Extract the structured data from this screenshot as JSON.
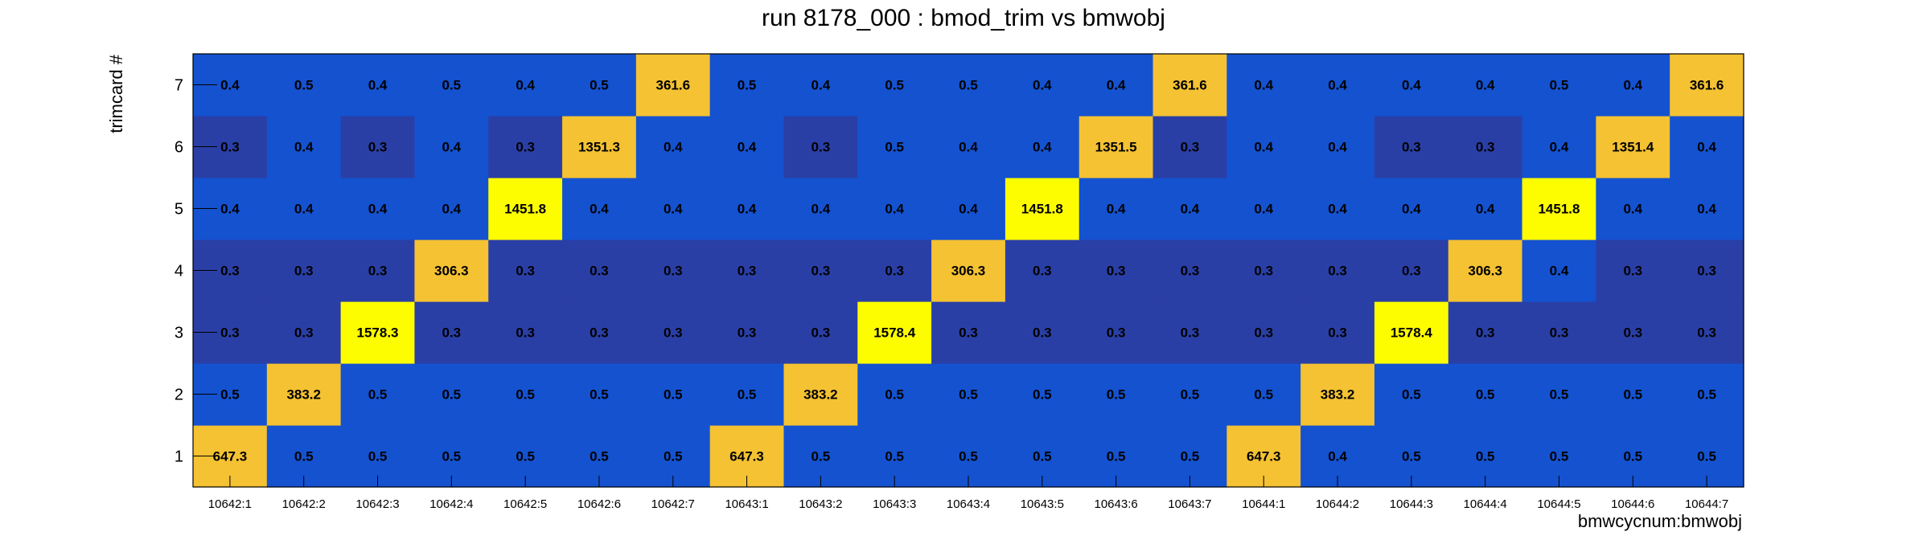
{
  "chart_data": {
    "type": "heatmap",
    "title": "run 8178_000 : bmod_trim vs bmwobj",
    "xlabel": "bmwcycnum:bmwobj",
    "ylabel": "trimcard #",
    "categories": [
      "10642:1",
      "10642:2",
      "10642:3",
      "10642:4",
      "10642:5",
      "10642:6",
      "10642:7",
      "10643:1",
      "10643:2",
      "10643:3",
      "10643:4",
      "10643:5",
      "10643:6",
      "10643:7",
      "10644:1",
      "10644:2",
      "10644:3",
      "10644:4",
      "10644:5",
      "10644:6",
      "10644:7"
    ],
    "rows": [
      "1",
      "2",
      "3",
      "4",
      "5",
      "6",
      "7"
    ],
    "values": [
      [
        "647.3",
        "0.5",
        "0.5",
        "0.5",
        "0.5",
        "0.5",
        "0.5",
        "647.3",
        "0.5",
        "0.5",
        "0.5",
        "0.5",
        "0.5",
        "0.5",
        "647.3",
        "0.4",
        "0.5",
        "0.5",
        "0.5",
        "0.5",
        "0.5"
      ],
      [
        "0.5",
        "383.2",
        "0.5",
        "0.5",
        "0.5",
        "0.5",
        "0.5",
        "0.5",
        "383.2",
        "0.5",
        "0.5",
        "0.5",
        "0.5",
        "0.5",
        "0.5",
        "383.2",
        "0.5",
        "0.5",
        "0.5",
        "0.5",
        "0.5"
      ],
      [
        "0.3",
        "0.3",
        "1578.3",
        "0.3",
        "0.3",
        "0.3",
        "0.3",
        "0.3",
        "0.3",
        "1578.4",
        "0.3",
        "0.3",
        "0.3",
        "0.3",
        "0.3",
        "0.3",
        "1578.4",
        "0.3",
        "0.3",
        "0.3",
        "0.3"
      ],
      [
        "0.3",
        "0.3",
        "0.3",
        "306.3",
        "0.3",
        "0.3",
        "0.3",
        "0.3",
        "0.3",
        "0.3",
        "306.3",
        "0.3",
        "0.3",
        "0.3",
        "0.3",
        "0.3",
        "0.3",
        "306.3",
        "0.4",
        "0.3",
        "0.3"
      ],
      [
        "0.4",
        "0.4",
        "0.4",
        "0.4",
        "1451.8",
        "0.4",
        "0.4",
        "0.4",
        "0.4",
        "0.4",
        "0.4",
        "1451.8",
        "0.4",
        "0.4",
        "0.4",
        "0.4",
        "0.4",
        "0.4",
        "1451.8",
        "0.4",
        "0.4"
      ],
      [
        "0.3",
        "0.4",
        "0.3",
        "0.4",
        "0.3",
        "1351.3",
        "0.4",
        "0.4",
        "0.3",
        "0.5",
        "0.4",
        "0.4",
        "1351.5",
        "0.3",
        "0.4",
        "0.4",
        "0.3",
        "0.3",
        "0.4",
        "1351.4",
        "0.4"
      ],
      [
        "0.4",
        "0.5",
        "0.4",
        "0.5",
        "0.4",
        "0.5",
        "361.6",
        "0.5",
        "0.4",
        "0.5",
        "0.5",
        "0.4",
        "0.4",
        "361.6",
        "0.4",
        "0.4",
        "0.4",
        "0.4",
        "0.5",
        "0.4",
        "361.6"
      ]
    ],
    "colors": {
      "dark_blue": "#2a3fa6",
      "blue": "#1452d0",
      "orange": "#f4c232",
      "yellow": "#fefd00"
    },
    "legend": "none",
    "grid": false
  }
}
